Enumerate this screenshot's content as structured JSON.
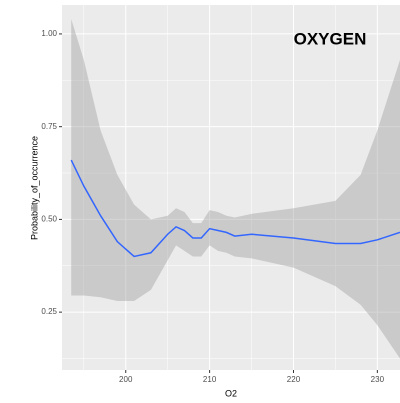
{
  "chart_data": {
    "type": "line",
    "annotation": "OXYGEN",
    "x_label": "O2",
    "y_label": "Probability_of_occurrence",
    "x": [
      193.5,
      195,
      197,
      199,
      201,
      203,
      205,
      206,
      207,
      208,
      209,
      210,
      211,
      212,
      213,
      215,
      220,
      225,
      228,
      230,
      232.7
    ],
    "series": [
      {
        "color": "#3366ff",
        "values": [
          0.66,
          0.59,
          0.51,
          0.44,
          0.4,
          0.41,
          0.46,
          0.48,
          0.47,
          0.45,
          0.45,
          0.475,
          0.47,
          0.465,
          0.455,
          0.46,
          0.45,
          0.435,
          0.435,
          0.445,
          0.465
        ],
        "upper": [
          1.04,
          0.93,
          0.74,
          0.62,
          0.54,
          0.5,
          0.51,
          0.53,
          0.52,
          0.49,
          0.49,
          0.525,
          0.52,
          0.51,
          0.505,
          0.515,
          0.53,
          0.55,
          0.62,
          0.74,
          0.93
        ],
        "lower": [
          0.295,
          0.295,
          0.29,
          0.28,
          0.28,
          0.31,
          0.39,
          0.43,
          0.415,
          0.4,
          0.4,
          0.43,
          0.415,
          0.41,
          0.4,
          0.395,
          0.37,
          0.32,
          0.27,
          0.215,
          0.125
        ]
      }
    ],
    "band_color": "#999999",
    "panel_color": "#ebebeb",
    "grid": true,
    "xlim": [
      192.4,
      232.7
    ],
    "ylim": [
      0.094,
      1.078
    ],
    "xticks": [
      200,
      210,
      220,
      230
    ],
    "yticks": [
      {
        "value": 0.25,
        "label": "0.25"
      },
      {
        "value": 0.5,
        "label": "0.50"
      },
      {
        "value": 0.75,
        "label": "0.75"
      },
      {
        "value": 1.0,
        "label": "1.00"
      }
    ]
  }
}
